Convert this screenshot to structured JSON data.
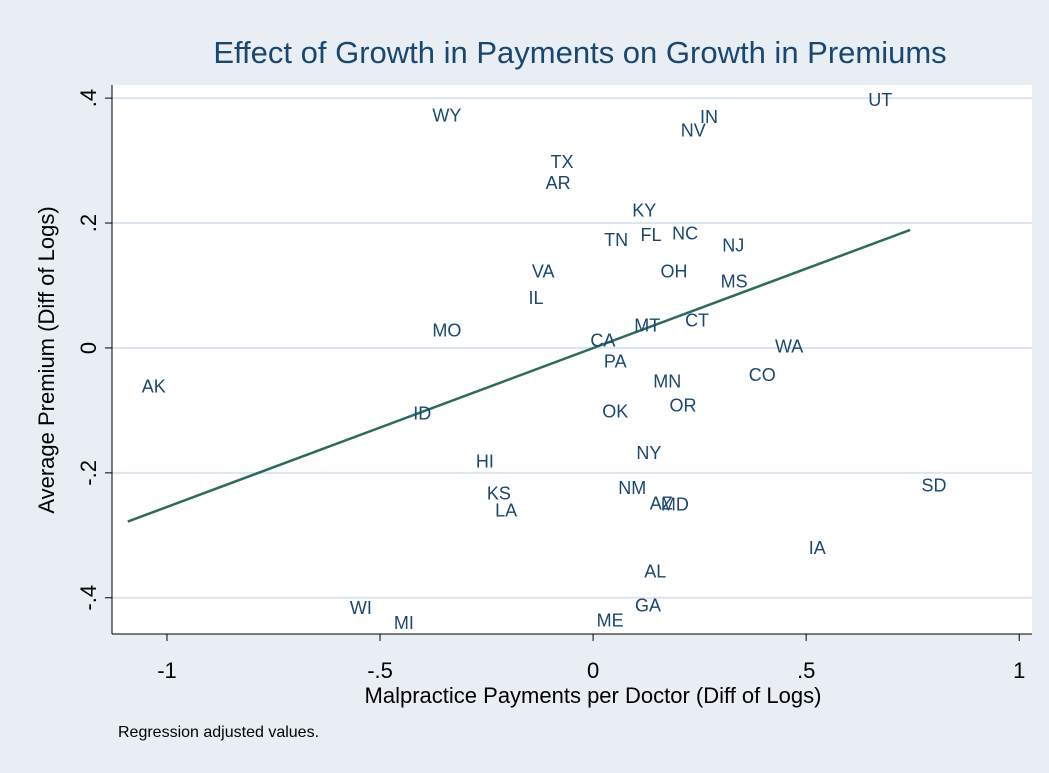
{
  "chart_data": {
    "type": "scatter",
    "title": "Effect of Growth in Payments on Growth in Premiums",
    "xlabel": "Malpractice Payments per Doctor (Diff of Logs)",
    "ylabel": "Average Premium (Diff of Logs)",
    "note": "Regression adjusted values.",
    "labels": [
      "UT",
      "WY",
      "IN",
      "NV",
      "TX",
      "AR",
      "KY",
      "TN",
      "FL",
      "NC",
      "NJ",
      "VA",
      "OH",
      "MS",
      "IL",
      "MO",
      "MT",
      "CT",
      "CA",
      "WA",
      "PA",
      "CO",
      "MN",
      "AK",
      "OR",
      "ID",
      "OK",
      "NY",
      "HI",
      "SD",
      "NM",
      "KS",
      "AZ",
      "MD",
      "LA",
      "IA",
      "AL",
      "GA",
      "WI",
      "MI",
      "ME"
    ],
    "x": [
      0.674,
      -0.343,
      0.272,
      0.235,
      -0.073,
      -0.082,
      0.12,
      0.054,
      0.136,
      0.216,
      0.329,
      -0.117,
      0.19,
      0.331,
      -0.134,
      -0.343,
      0.127,
      0.244,
      0.023,
      0.46,
      0.052,
      0.397,
      0.174,
      -1.031,
      0.211,
      -0.401,
      0.052,
      0.131,
      -0.254,
      0.8,
      0.092,
      -0.221,
      0.16,
      0.192,
      -0.204,
      0.526,
      0.146,
      0.129,
      -0.545,
      -0.444,
      0.04
    ],
    "values": [
      0.395,
      0.37,
      0.368,
      0.346,
      0.296,
      0.262,
      0.218,
      0.171,
      0.179,
      0.181,
      0.162,
      0.12,
      0.12,
      0.104,
      0.078,
      0.026,
      0.034,
      0.042,
      0.01,
      0.0,
      -0.024,
      -0.045,
      -0.056,
      -0.064,
      -0.094,
      -0.107,
      -0.104,
      -0.17,
      -0.184,
      -0.222,
      -0.226,
      -0.235,
      -0.251,
      -0.253,
      -0.262,
      -0.322,
      -0.36,
      -0.414,
      -0.418,
      -0.442,
      -0.438
    ],
    "label_color": "#1a476f",
    "fit_line": {
      "x": [
        -1.092,
        0.744
      ],
      "values": [
        -0.278,
        0.189
      ],
      "color": "#2d6b5e"
    },
    "xlim": [
      -1.129,
      1.03
    ],
    "ylim": [
      -0.458,
      0.421
    ],
    "xticks": [
      -1,
      {
        "value": -0.5,
        "label": "-.5"
      },
      0,
      {
        "value": 0.5,
        "label": ".5"
      },
      1
    ],
    "yticks": [
      {
        "value": -0.4,
        "label": "-.4"
      },
      {
        "value": -0.2,
        "label": "-.2"
      },
      0,
      {
        "value": 0.2,
        "label": ".2"
      },
      {
        "value": 0.4,
        "label": ".4"
      }
    ],
    "grid": true
  }
}
